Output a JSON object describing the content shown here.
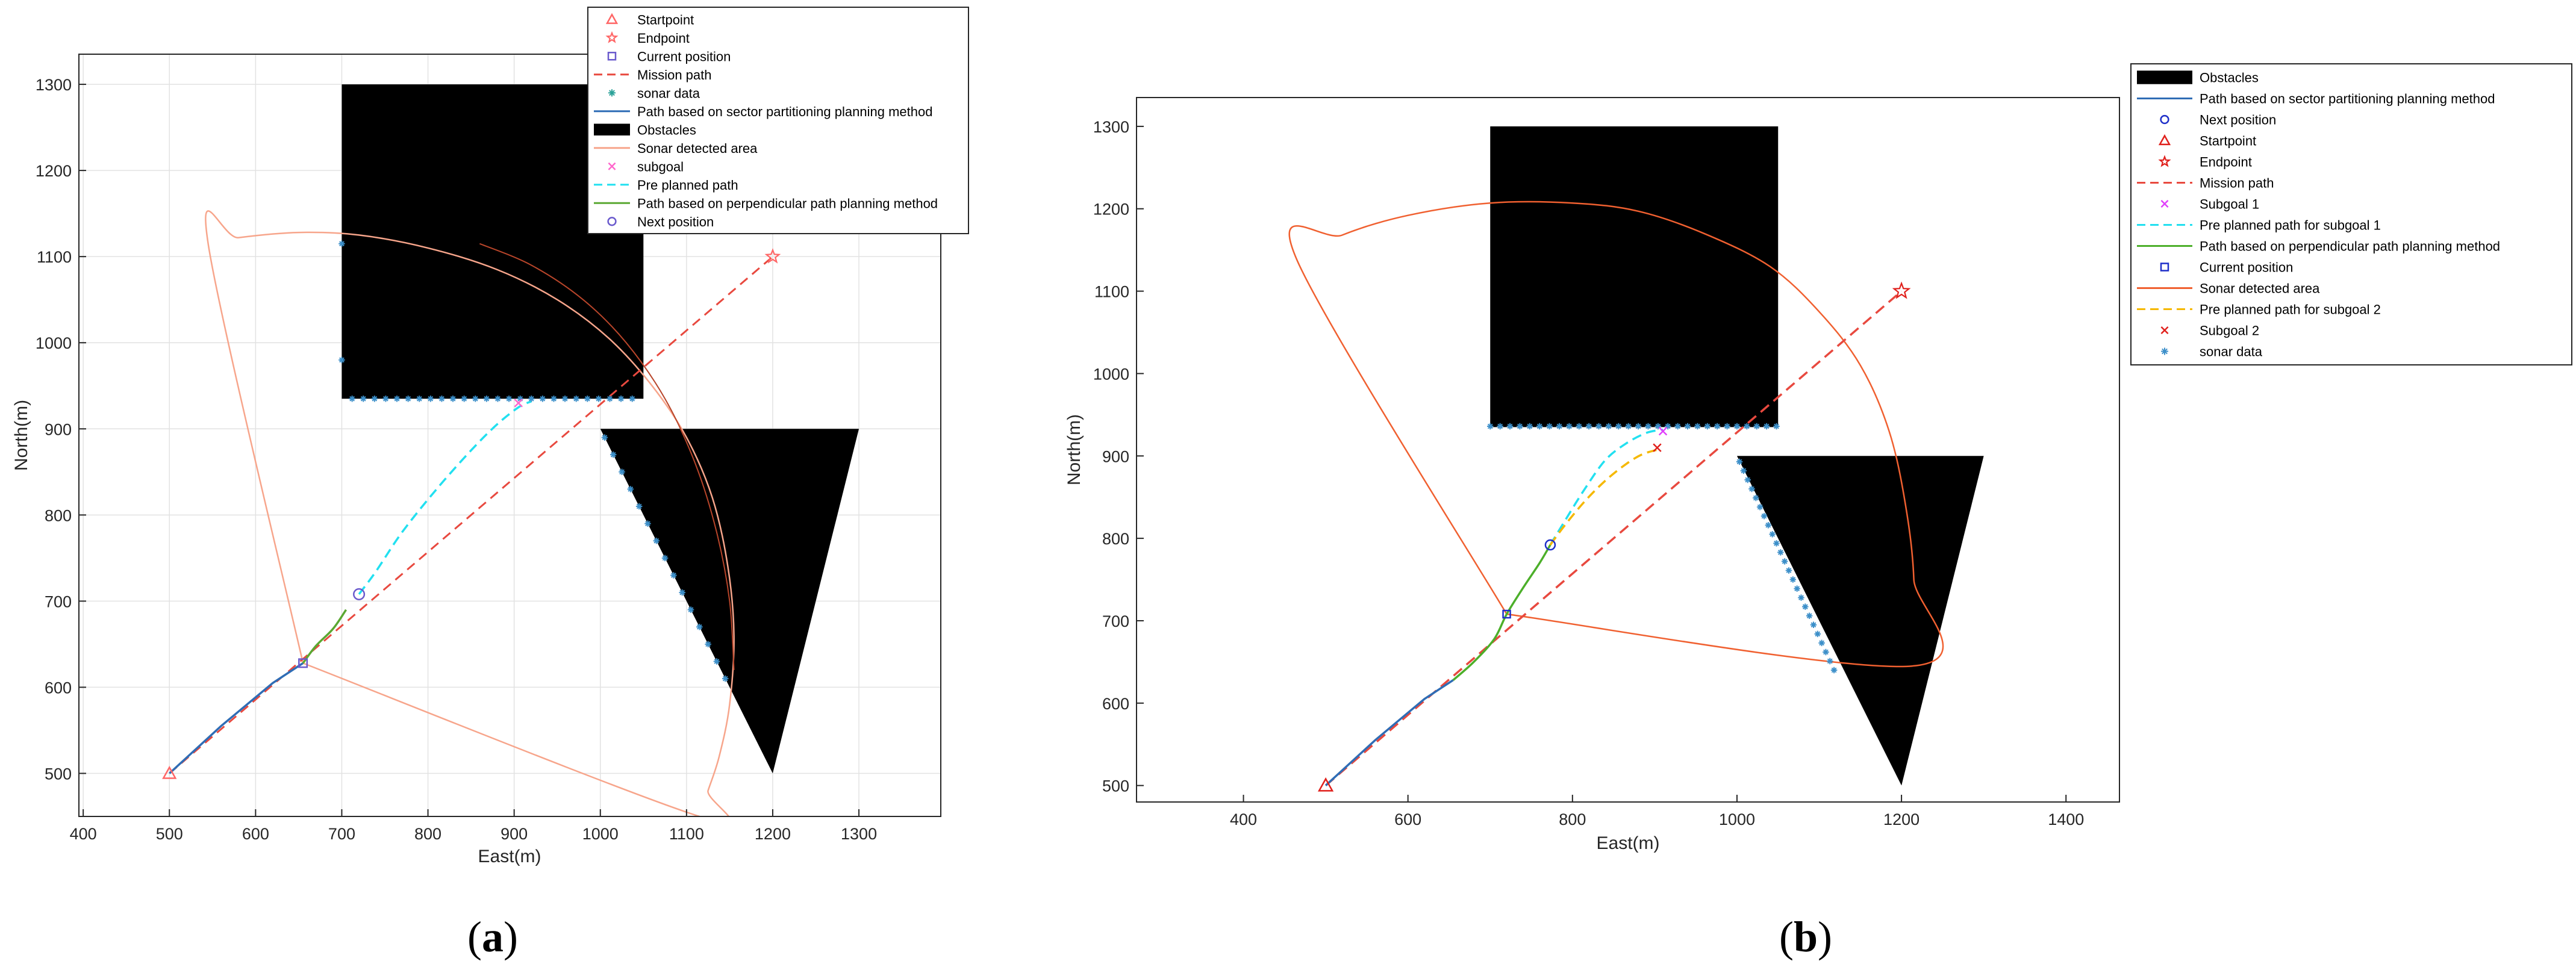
{
  "chart_data": [
    {
      "type": "line",
      "panel": "a",
      "caption": "(a)",
      "caption_letter": "a",
      "xlabel": "East(m)",
      "ylabel": "North(m)",
      "xlim": [
        395,
        1395
      ],
      "ylim": [
        450,
        1335
      ],
      "xticks": [
        400,
        500,
        600,
        700,
        800,
        900,
        1000,
        1100,
        1200,
        1300
      ],
      "yticks": [
        500,
        600,
        700,
        800,
        900,
        1000,
        1100,
        1200,
        1300
      ],
      "grid": true,
      "legend_position": "top-right",
      "colors": {
        "mission": "#e8493f",
        "sonar_area": "#f7a58b",
        "arc_inner": "#b8452a",
        "sector_path": "#2f6db5",
        "perp_path": "#5aa832",
        "pre_planned": "#22e0f0",
        "sonar_pts": "#3c8fc9",
        "marker_red": "#ff6666",
        "marker_blue": "#6a5acd",
        "subgoal": "#ff66cc",
        "grid": "#e2e2e2"
      },
      "legend": [
        {
          "label": "Startpoint",
          "symbol": "triangle",
          "color": "#ff6666"
        },
        {
          "label": "Endpoint",
          "symbol": "star",
          "color": "#ff6666"
        },
        {
          "label": "Current position",
          "symbol": "square",
          "color": "#6a5acd"
        },
        {
          "label": "Mission path",
          "symbol": "dash",
          "color": "#e8493f"
        },
        {
          "label": "sonar data",
          "symbol": "asterisk",
          "color": "#2aa198"
        },
        {
          "label": "Path based on sector partitioning planning method",
          "symbol": "line",
          "color": "#2f6db5"
        },
        {
          "label": "Obstacles",
          "symbol": "block",
          "color": "#000000"
        },
        {
          "label": "Sonar detected area",
          "symbol": "line",
          "color": "#f7a58b"
        },
        {
          "label": "subgoal",
          "symbol": "x",
          "color": "#ff66cc"
        },
        {
          "label": "Pre planned path",
          "symbol": "dash",
          "color": "#22e0f0"
        },
        {
          "label": "Path based on perpendicular path planning method",
          "symbol": "line",
          "color": "#5aa832"
        },
        {
          "label": "Next position",
          "symbol": "circle",
          "color": "#6a5acd"
        }
      ],
      "obstacles": [
        {
          "shape": "rectangle",
          "x": [
            700,
            1050,
            1050,
            700
          ],
          "y": [
            935,
            935,
            1300,
            1300
          ]
        },
        {
          "shape": "triangle",
          "x": [
            1000,
            1300,
            1200
          ],
          "y": [
            900,
            900,
            500
          ]
        }
      ],
      "mission_path": {
        "x": [
          500,
          1200
        ],
        "y": [
          500,
          1100
        ]
      },
      "startpoint": {
        "x": 500,
        "y": 500
      },
      "endpoint": {
        "x": 1200,
        "y": 1100
      },
      "current_position": {
        "x": 655,
        "y": 628
      },
      "next_position": {
        "x": 720,
        "y": 708
      },
      "sector_path": {
        "x": [
          500,
          560,
          620,
          655
        ],
        "y": [
          500,
          555,
          605,
          628
        ]
      },
      "perpendicular_path": {
        "x": [
          655,
          670,
          690,
          705
        ],
        "y": [
          628,
          648,
          668,
          690
        ]
      },
      "pre_planned_path": {
        "x": [
          720,
          740,
          770,
          810,
          850,
          880,
          905,
          920
        ],
        "y": [
          708,
          735,
          780,
          830,
          875,
          905,
          925,
          932
        ]
      },
      "sonar_area": {
        "x": [
          655,
          545,
          580,
          650,
          720,
          800,
          880,
          950,
          1010,
          1060,
          1100,
          1130,
          1148,
          1155,
          1150,
          1138,
          1125,
          1115,
          655
        ],
        "y": [
          628,
          1115,
          1122,
          1128,
          1125,
          1110,
          1085,
          1050,
          1005,
          950,
          890,
          820,
          740,
          660,
          580,
          520,
          480,
          450,
          628
        ]
      },
      "sonar_area_inner_arc": {
        "x": [
          860,
          920,
          980,
          1030,
          1075,
          1110,
          1135,
          1150,
          1155
        ],
        "y": [
          1115,
          1090,
          1050,
          1000,
          935,
          860,
          780,
          700,
          620
        ]
      },
      "sonar_data": [
        {
          "x": 700,
          "y": 1115
        },
        {
          "x": 700,
          "y": 980
        },
        {
          "x": 712,
          "y": 935
        },
        {
          "x": 725,
          "y": 935
        },
        {
          "x": 738,
          "y": 935
        },
        {
          "x": 751,
          "y": 935
        },
        {
          "x": 764,
          "y": 935
        },
        {
          "x": 777,
          "y": 935
        },
        {
          "x": 790,
          "y": 935
        },
        {
          "x": 803,
          "y": 935
        },
        {
          "x": 816,
          "y": 935
        },
        {
          "x": 829,
          "y": 935
        },
        {
          "x": 842,
          "y": 935
        },
        {
          "x": 855,
          "y": 935
        },
        {
          "x": 868,
          "y": 935
        },
        {
          "x": 881,
          "y": 935
        },
        {
          "x": 894,
          "y": 935
        },
        {
          "x": 907,
          "y": 935
        },
        {
          "x": 920,
          "y": 935
        },
        {
          "x": 933,
          "y": 935
        },
        {
          "x": 946,
          "y": 935
        },
        {
          "x": 959,
          "y": 935
        },
        {
          "x": 972,
          "y": 935
        },
        {
          "x": 985,
          "y": 935
        },
        {
          "x": 998,
          "y": 935
        },
        {
          "x": 1011,
          "y": 935
        },
        {
          "x": 1024,
          "y": 935
        },
        {
          "x": 1037,
          "y": 935
        },
        {
          "x": 1005,
          "y": 890
        },
        {
          "x": 1015,
          "y": 870
        },
        {
          "x": 1025,
          "y": 850
        },
        {
          "x": 1035,
          "y": 830
        },
        {
          "x": 1045,
          "y": 810
        },
        {
          "x": 1055,
          "y": 790
        },
        {
          "x": 1065,
          "y": 770
        },
        {
          "x": 1075,
          "y": 750
        },
        {
          "x": 1085,
          "y": 730
        },
        {
          "x": 1095,
          "y": 710
        },
        {
          "x": 1105,
          "y": 690
        },
        {
          "x": 1115,
          "y": 670
        },
        {
          "x": 1125,
          "y": 650
        },
        {
          "x": 1135,
          "y": 630
        },
        {
          "x": 1145,
          "y": 610
        }
      ],
      "subgoals": [
        {
          "x": 905,
          "y": 930
        }
      ]
    },
    {
      "type": "line",
      "panel": "b",
      "caption": "(b)",
      "caption_letter": "b",
      "xlabel": "East(m)",
      "ylabel": "North(m)",
      "xlim": [
        270,
        1465
      ],
      "ylim": [
        480,
        1335
      ],
      "xticks": [
        400,
        600,
        800,
        1000,
        1200,
        1400
      ],
      "yticks": [
        500,
        600,
        700,
        800,
        900,
        1000,
        1100,
        1200,
        1300
      ],
      "grid": false,
      "legend_position": "outside-right",
      "colors": {
        "mission": "#e8493f",
        "sonar_area": "#f06030",
        "sector_path": "#2f6db5",
        "perp_path": "#4caf2a",
        "pre_planned_1": "#22e0f0",
        "pre_planned_2": "#f5b800",
        "sonar_pts": "#3c8fc9",
        "marker_red": "#e0201c",
        "marker_blue": "#1f2fc9",
        "subgoal1": "#e040fb",
        "subgoal2": "#e0201c"
      },
      "legend": [
        {
          "label": "Obstacles",
          "symbol": "block",
          "color": "#000000"
        },
        {
          "label": "Path based on sector partitioning planning method",
          "symbol": "line",
          "color": "#2f6db5"
        },
        {
          "label": "Next position",
          "symbol": "circle",
          "color": "#1f2fc9"
        },
        {
          "label": "Startpoint",
          "symbol": "triangle",
          "color": "#e0201c"
        },
        {
          "label": "Endpoint",
          "symbol": "star",
          "color": "#e0201c"
        },
        {
          "label": "Mission path",
          "symbol": "dash",
          "color": "#e8493f"
        },
        {
          "label": "Subgoal 1",
          "symbol": "x",
          "color": "#e040fb"
        },
        {
          "label": "Pre planned path for subgoal 1",
          "symbol": "dash",
          "color": "#22e0f0"
        },
        {
          "label": "Path based on perpendicular path planning method",
          "symbol": "line",
          "color": "#4caf2a"
        },
        {
          "label": "Current position",
          "symbol": "square",
          "color": "#1f2fc9"
        },
        {
          "label": "Sonar detected area",
          "symbol": "line",
          "color": "#f06030"
        },
        {
          "label": "Pre planned path for subgoal 2",
          "symbol": "dash",
          "color": "#f5b800"
        },
        {
          "label": "Subgoal 2",
          "symbol": "x",
          "color": "#e0201c"
        },
        {
          "label": "sonar data",
          "symbol": "asterisk",
          "color": "#3c8fc9"
        }
      ],
      "obstacles": [
        {
          "shape": "rectangle",
          "x": [
            700,
            1050,
            1050,
            700
          ],
          "y": [
            935,
            935,
            1300,
            1300
          ]
        },
        {
          "shape": "triangle",
          "x": [
            1000,
            1300,
            1200
          ],
          "y": [
            900,
            900,
            500
          ]
        }
      ],
      "mission_path": {
        "x": [
          500,
          1200
        ],
        "y": [
          500,
          1100
        ]
      },
      "startpoint": {
        "x": 500,
        "y": 500
      },
      "endpoint": {
        "x": 1200,
        "y": 1100
      },
      "current_position": {
        "x": 720,
        "y": 708
      },
      "next_position": {
        "x": 773,
        "y": 792
      },
      "sector_path": {
        "x": [
          500,
          560,
          620,
          655
        ],
        "y": [
          500,
          555,
          605,
          628
        ]
      },
      "perpendicular_path": {
        "x": [
          655,
          680,
          705,
          720,
          740,
          760,
          773
        ],
        "y": [
          628,
          650,
          678,
          708,
          740,
          770,
          792
        ]
      },
      "pre_planned_path_1": {
        "x": [
          773,
          790,
          815,
          840,
          865,
          890,
          910
        ],
        "y": [
          792,
          820,
          860,
          895,
          915,
          928,
          932
        ]
      },
      "pre_planned_path_2": {
        "x": [
          773,
          790,
          815,
          840,
          865,
          885,
          905
        ],
        "y": [
          792,
          815,
          845,
          870,
          890,
          902,
          908
        ]
      },
      "sonar_area": {
        "x": [
          720,
          465,
          520,
          600,
          700,
          800,
          880,
          960,
          1040,
          1100,
          1150,
          1185,
          1205,
          1215,
          1213,
          720
        ],
        "y": [
          708,
          1138,
          1168,
          1192,
          1207,
          1207,
          1197,
          1170,
          1130,
          1075,
          1010,
          930,
          840,
          750,
          645,
          708
        ]
      },
      "sonar_data": [
        {
          "x": 700,
          "y": 936
        },
        {
          "x": 712,
          "y": 936
        },
        {
          "x": 724,
          "y": 936
        },
        {
          "x": 736,
          "y": 936
        },
        {
          "x": 748,
          "y": 936
        },
        {
          "x": 760,
          "y": 936
        },
        {
          "x": 772,
          "y": 936
        },
        {
          "x": 784,
          "y": 936
        },
        {
          "x": 796,
          "y": 936
        },
        {
          "x": 808,
          "y": 936
        },
        {
          "x": 820,
          "y": 936
        },
        {
          "x": 832,
          "y": 936
        },
        {
          "x": 844,
          "y": 936
        },
        {
          "x": 856,
          "y": 936
        },
        {
          "x": 868,
          "y": 936
        },
        {
          "x": 880,
          "y": 936
        },
        {
          "x": 892,
          "y": 936
        },
        {
          "x": 904,
          "y": 936
        },
        {
          "x": 916,
          "y": 936
        },
        {
          "x": 928,
          "y": 936
        },
        {
          "x": 940,
          "y": 936
        },
        {
          "x": 952,
          "y": 936
        },
        {
          "x": 964,
          "y": 936
        },
        {
          "x": 976,
          "y": 936
        },
        {
          "x": 988,
          "y": 936
        },
        {
          "x": 1000,
          "y": 936
        },
        {
          "x": 1012,
          "y": 936
        },
        {
          "x": 1024,
          "y": 936
        },
        {
          "x": 1036,
          "y": 936
        },
        {
          "x": 1048,
          "y": 936
        },
        {
          "x": 1003,
          "y": 893
        },
        {
          "x": 1008,
          "y": 882
        },
        {
          "x": 1013,
          "y": 871
        },
        {
          "x": 1018,
          "y": 860
        },
        {
          "x": 1023,
          "y": 849
        },
        {
          "x": 1028,
          "y": 838
        },
        {
          "x": 1033,
          "y": 827
        },
        {
          "x": 1038,
          "y": 816
        },
        {
          "x": 1043,
          "y": 805
        },
        {
          "x": 1048,
          "y": 794
        },
        {
          "x": 1053,
          "y": 783
        },
        {
          "x": 1058,
          "y": 772
        },
        {
          "x": 1063,
          "y": 761
        },
        {
          "x": 1068,
          "y": 750
        },
        {
          "x": 1073,
          "y": 739
        },
        {
          "x": 1078,
          "y": 728
        },
        {
          "x": 1083,
          "y": 717
        },
        {
          "x": 1088,
          "y": 706
        },
        {
          "x": 1093,
          "y": 695
        },
        {
          "x": 1098,
          "y": 684
        },
        {
          "x": 1103,
          "y": 673
        },
        {
          "x": 1108,
          "y": 662
        },
        {
          "x": 1113,
          "y": 651
        },
        {
          "x": 1118,
          "y": 640
        }
      ],
      "subgoal_1": {
        "x": 910,
        "y": 930
      },
      "subgoal_2": {
        "x": 903,
        "y": 910
      }
    }
  ]
}
